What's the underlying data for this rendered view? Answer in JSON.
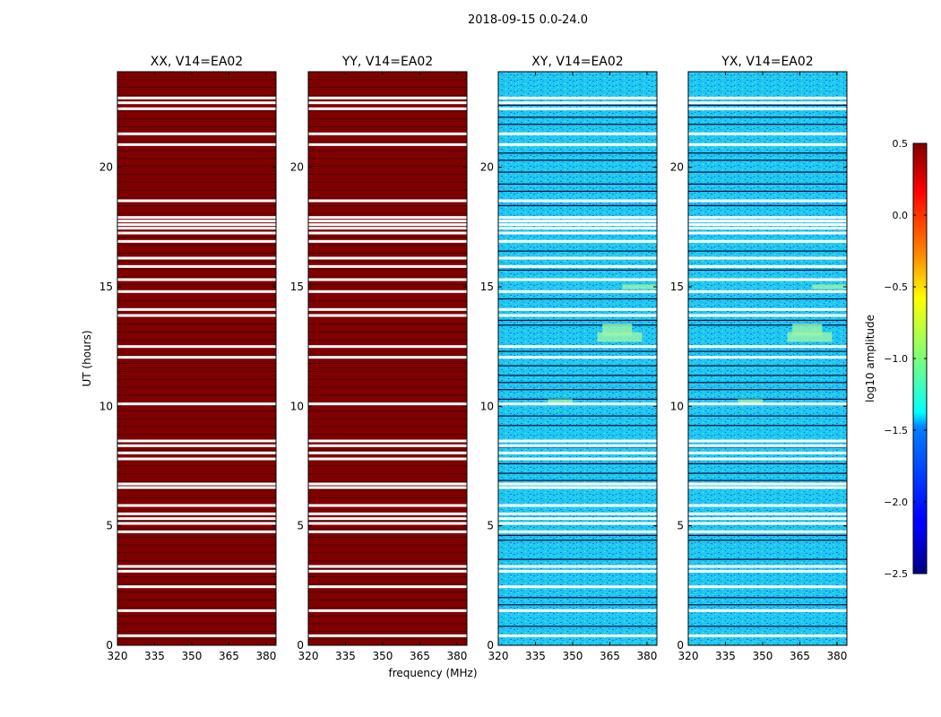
{
  "figure": {
    "suptitle": "2018-09-15 0.0-24.0",
    "ylabel": "UT (hours)",
    "xlabel": "frequency (MHz)"
  },
  "chart_data": [
    {
      "type": "heatmap",
      "title": "XX, V14=EA02",
      "x_ticks": [
        "320",
        "335",
        "350",
        "365",
        "380"
      ],
      "y_ticks": [
        "0",
        "5",
        "10",
        "15",
        "20"
      ],
      "xlim": [
        320,
        384
      ],
      "ylim": [
        0,
        24
      ],
      "fill_level": 0.5,
      "appearance": "saturated"
    },
    {
      "type": "heatmap",
      "title": "YY, V14=EA02",
      "x_ticks": [
        "320",
        "335",
        "350",
        "365",
        "380"
      ],
      "y_ticks": [
        "0",
        "5",
        "10",
        "15",
        "20"
      ],
      "xlim": [
        320,
        384
      ],
      "ylim": [
        0,
        24
      ],
      "fill_level": 0.5,
      "appearance": "saturated"
    },
    {
      "type": "heatmap",
      "title": "XY, V14=EA02",
      "x_ticks": [
        "320",
        "335",
        "350",
        "365",
        "380"
      ],
      "y_ticks": [
        "0",
        "5",
        "10",
        "15",
        "20"
      ],
      "xlim": [
        320,
        384
      ],
      "ylim": [
        0,
        24
      ],
      "fill_level": -1.5,
      "appearance": "noise"
    },
    {
      "type": "heatmap",
      "title": "YX, V14=EA02",
      "x_ticks": [
        "320",
        "335",
        "350",
        "365",
        "380"
      ],
      "y_ticks": [
        "0",
        "5",
        "10",
        "15",
        "20"
      ],
      "xlim": [
        320,
        384
      ],
      "ylim": [
        0,
        24
      ],
      "fill_level": -1.5,
      "appearance": "noise"
    }
  ],
  "flagged_ut_hours": [
    0.4,
    1.45,
    2.45,
    3.1,
    3.3,
    4.75,
    5.1,
    5.3,
    5.5,
    5.85,
    6.6,
    6.75,
    7.8,
    8.05,
    8.35,
    8.55,
    10.1,
    12.05,
    12.5,
    13.8,
    14.05,
    14.8,
    15.3,
    15.85,
    16.2,
    16.9,
    17.25,
    17.45,
    17.6,
    17.75,
    17.9,
    18.6,
    20.95,
    21.4,
    22.45,
    22.7,
    22.9
  ],
  "colorbar": {
    "label": "log10 amplitude",
    "ticks": [
      "0.5",
      "0.0",
      "−0.5",
      "−1.0",
      "−1.5",
      "−2.0",
      "−2.5"
    ],
    "min": -2.5,
    "max": 0.5,
    "colormap": "jet"
  }
}
